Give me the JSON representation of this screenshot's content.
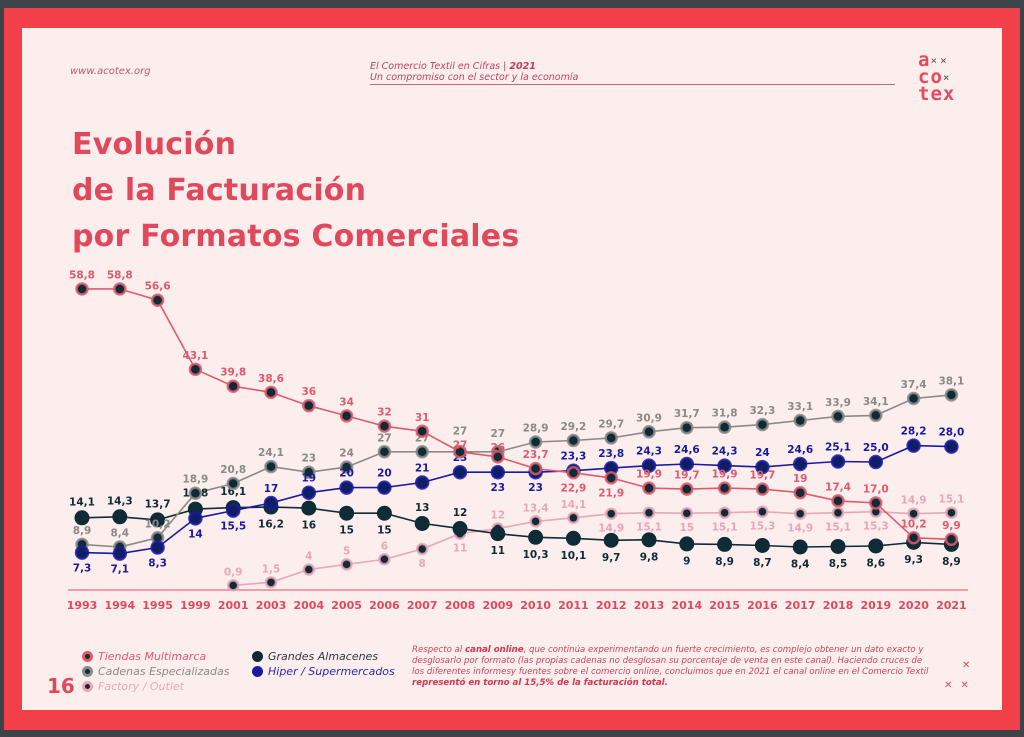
{
  "header": {
    "website": "www.acotex.org",
    "publication": "El Comercio Textil en Cifras",
    "separator": "|",
    "year": "2021",
    "subtitle": "Un compromiso con el sector y la economía",
    "logo_lines": [
      "a",
      "co",
      "tex"
    ]
  },
  "title_lines": [
    "Evolución",
    "de la Facturación",
    "por Formatos Comerciales"
  ],
  "page_number": "16",
  "note": {
    "prefix": "Respecto al ",
    "bold1": "canal online",
    "middle": ", que continúa experimentando un fuerte crecimiento, es complejo obtener un dato exacto y desglosarlo por formato (las propias cadenas no desglosan su porcentaje de venta en este canal). Haciendo cruces de los diferentes informesy fuentes sobre el comercio online, concluimos que en 2021 el canal online en el Comercio Textil ",
    "bold2": "representó en torno al 15,5% de la facturación total."
  },
  "colors": {
    "frame": "#f2404b",
    "page_bg": "#fdeeee",
    "accent": "#e0495c",
    "tiendas": "#e05a6c",
    "cadenas": "#8a8a87",
    "factory": "#eaa6b6",
    "grandes": "#0f2b36",
    "hiper": "#1a1aa0"
  },
  "chart_data": {
    "type": "line",
    "title": "Evolución de la Facturación por Formatos Comerciales",
    "xlabel": "",
    "ylabel": "",
    "ylim": [
      0,
      60
    ],
    "grid": false,
    "legend_position": "bottom-left",
    "categories": [
      "1993",
      "1994",
      "1995",
      "1999",
      "2001",
      "2003",
      "2004",
      "2005",
      "2006",
      "2007",
      "2008",
      "2009",
      "2010",
      "2011",
      "2012",
      "2013",
      "2014",
      "2015",
      "2016",
      "2017",
      "2018",
      "2019",
      "2020",
      "2021"
    ],
    "series": [
      {
        "key": "tiendas",
        "name": "Tiendas Multimarca",
        "values": [
          58.8,
          58.8,
          56.6,
          43.1,
          39.8,
          38.6,
          36,
          34,
          32,
          31,
          27,
          26,
          23.7,
          22.9,
          21.9,
          19.9,
          19.7,
          19.9,
          19.7,
          19,
          17.4,
          17.0,
          10.2,
          9.9
        ],
        "labels": [
          "58,8",
          "58,8",
          "56,6",
          "43,1",
          "39,8",
          "38,6",
          "36",
          "34",
          "32",
          "31",
          "27",
          "26",
          "23,7",
          "22,9",
          "21,9",
          "19,9",
          "19,7",
          "19,9",
          "19,7",
          "19",
          "17,4",
          "17,0",
          "10,2",
          "9,9"
        ]
      },
      {
        "key": "cadenas",
        "name": "Cadenas Especializadas",
        "values": [
          8.9,
          8.4,
          10.2,
          18.9,
          20.8,
          24.1,
          23,
          24,
          27,
          27,
          27,
          27,
          28.9,
          29.2,
          29.7,
          30.9,
          31.7,
          31.8,
          32.3,
          33.1,
          33.9,
          34.1,
          37.4,
          38.1
        ],
        "labels": [
          "8,9",
          "8,4",
          "10,2",
          "18,9",
          "20,8",
          "24,1",
          "23",
          "24",
          "27",
          "27",
          "27",
          "27",
          "28,9",
          "29,2",
          "29,7",
          "30,9",
          "31,7",
          "31,8",
          "32,3",
          "33,1",
          "33,9",
          "34,1",
          "37,4",
          "38,1"
        ]
      },
      {
        "key": "factory",
        "name": "Factory / Outlet",
        "values": [
          null,
          null,
          null,
          null,
          0.9,
          1.5,
          4,
          5,
          6,
          8,
          11,
          12,
          13.4,
          14.1,
          14.9,
          15.1,
          15,
          15.1,
          15.3,
          14.9,
          15.1,
          15.3,
          14.9,
          15.1
        ],
        "labels": [
          null,
          null,
          null,
          null,
          "0,9",
          "1,5",
          "4",
          "5",
          "6",
          "8",
          "11",
          "12",
          "13,4",
          "14,1",
          "14,9",
          "15,1",
          "15",
          "15,1",
          "15,3",
          "14,9",
          "15,1",
          "15,3",
          "14,9",
          "15,1"
        ]
      },
      {
        "key": "grandes",
        "name": "Grandes Almacenes",
        "values": [
          14.1,
          14.3,
          13.7,
          15.8,
          16.1,
          16.2,
          16,
          15,
          15,
          13,
          12,
          11,
          10.3,
          10.1,
          9.7,
          9.8,
          9,
          8.9,
          8.7,
          8.4,
          8.5,
          8.6,
          9.3,
          8.9
        ],
        "labels": [
          "14,1",
          "14,3",
          "13,7",
          "15,8",
          "16,1",
          "16,2",
          "16",
          "15",
          "15",
          "13",
          "12",
          "11",
          "10,3",
          "10,1",
          "9,7",
          "9,8",
          "9",
          "8,9",
          "8,7",
          "8,4",
          "8,5",
          "8,6",
          "9,3",
          "8,9"
        ]
      },
      {
        "key": "hiper",
        "name": "Hiper / Supermercados",
        "values": [
          7.3,
          7.1,
          8.3,
          14,
          15.5,
          17,
          19,
          20,
          20,
          21,
          23,
          23,
          23,
          23.3,
          23.8,
          24.3,
          24.6,
          24.3,
          24,
          24.6,
          25.1,
          25.0,
          28.2,
          28.0
        ],
        "labels": [
          "7,3",
          "7,1",
          "8,3",
          "14",
          "15,5",
          "17",
          "19",
          "20",
          "20",
          "21",
          "23",
          "23",
          "23",
          "23,3",
          "23,8",
          "24,3",
          "24,6",
          "24,3",
          "24",
          "24,6",
          "25,1",
          "25,0",
          "28,2",
          "28,0"
        ]
      }
    ]
  }
}
